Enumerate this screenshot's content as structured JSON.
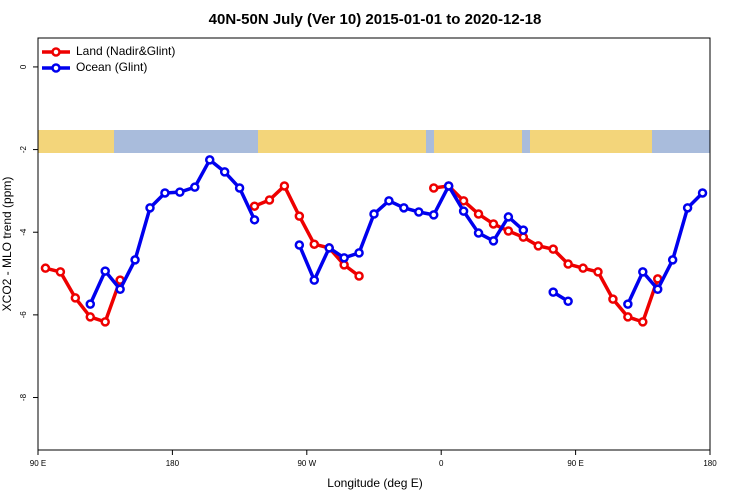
{
  "chart_data": {
    "type": "line",
    "title": "40N-50N July (Ver 10)   2015-01-01 to 2020-12-18",
    "x_label": "Longitude (deg E)",
    "y_label": "XCO2 - MLO trend (ppm)",
    "x": [
      95,
      105,
      115,
      125,
      135,
      145,
      155,
      165,
      175,
      185,
      195,
      205,
      215,
      225,
      235,
      245,
      255,
      265,
      275,
      285,
      295,
      305,
      315,
      325,
      335,
      345,
      355,
      365,
      375,
      385,
      395,
      405,
      415,
      425,
      435,
      445,
      455,
      465,
      475,
      485,
      495,
      505,
      515,
      525,
      535
    ],
    "series": [
      {
        "name": "Land (Nadir&Glint)",
        "color": "#ee0000",
        "values": [
          -4.87,
          -4.96,
          -5.59,
          -6.05,
          -6.17,
          -5.16,
          null,
          null,
          null,
          null,
          null,
          null,
          null,
          null,
          -3.37,
          -3.22,
          -2.88,
          -3.61,
          -4.29,
          -4.38,
          -4.79,
          -5.06,
          null,
          null,
          null,
          null,
          -2.93,
          -2.88,
          -3.24,
          -3.56,
          -3.8,
          -3.97,
          -4.12,
          -4.33,
          -4.41,
          -4.77,
          -4.87,
          -4.96,
          -5.62,
          -6.05,
          -6.17,
          -5.13,
          null,
          null,
          null
        ]
      },
      {
        "name": "Ocean (Glint)",
        "color": "#0000ee",
        "values": [
          null,
          null,
          null,
          -5.74,
          -4.94,
          -5.38,
          -4.67,
          -3.41,
          -3.05,
          -3.03,
          -2.91,
          -2.25,
          -2.54,
          -2.93,
          -3.7,
          null,
          null,
          -4.31,
          -5.16,
          -4.38,
          -4.62,
          -4.5,
          -3.56,
          -3.24,
          -3.41,
          -3.51,
          -3.58,
          -2.88,
          -3.49,
          -4.02,
          -4.21,
          -3.63,
          -3.95,
          null,
          -5.45,
          -5.67,
          null,
          null,
          null,
          -5.74,
          -4.96,
          -5.38,
          -4.67,
          -3.41,
          -3.05
        ]
      }
    ],
    "xlim": [
      90,
      540
    ],
    "xticks": [
      {
        "value": 90,
        "label": "90 E"
      },
      180,
      {
        "value": 270,
        "label": "90 W"
      },
      {
        "value": 360,
        "label": "0"
      },
      {
        "value": 450,
        "label": "90 E"
      },
      {
        "value": 540,
        "label": "180"
      }
    ],
    "ylim": [
      -9.27,
      0.7
    ],
    "yticks": [
      -8,
      -6,
      -4,
      -2,
      0
    ],
    "legend": "top-left"
  }
}
